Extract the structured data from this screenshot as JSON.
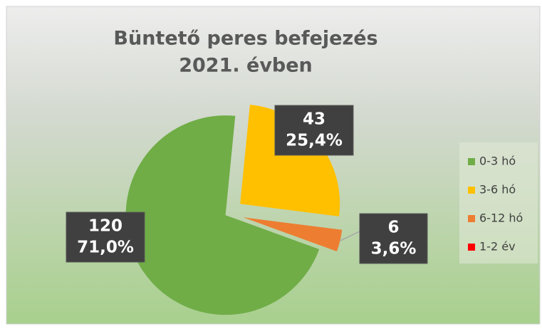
{
  "chart_data": {
    "type": "pie",
    "title": "Büntető peres befejezés",
    "subtitle": "2021. évben",
    "categories": [
      "0-3 hó",
      "3-6 hó",
      "6-12 hó",
      "1-2 év"
    ],
    "values": [
      120,
      43,
      6,
      0
    ],
    "percent_labels": [
      "71,0%",
      "25,4%",
      "3,6%",
      null
    ],
    "colors": [
      "#70ad47",
      "#ffc000",
      "#ed7d31",
      "#ff0000"
    ],
    "start_angle": 110,
    "legend": "right"
  }
}
